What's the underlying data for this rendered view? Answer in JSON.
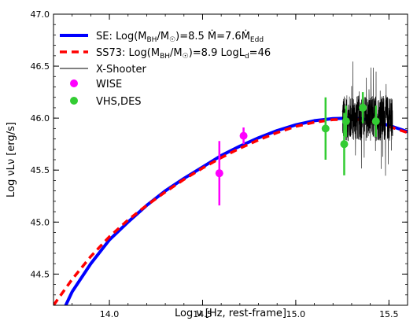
{
  "chart_data": {
    "type": "scatter",
    "xlabel": "Log ν [Hz, rest-frame]",
    "ylabel": "Log νLν [erg/s]",
    "xlim": [
      13.7,
      15.6
    ],
    "ylim": [
      44.2,
      47.0
    ],
    "x_ticks": [
      {
        "value": 14.0,
        "label": "14.0"
      },
      {
        "value": 14.5,
        "label": "14.5"
      },
      {
        "value": 15.0,
        "label": "15.0"
      },
      {
        "value": 15.5,
        "label": "15.5"
      }
    ],
    "y_ticks": [
      {
        "value": 44.5,
        "label": "44.5"
      },
      {
        "value": 45.0,
        "label": "45.0"
      },
      {
        "value": 45.5,
        "label": "45.5"
      },
      {
        "value": 46.0,
        "label": "46.0"
      },
      {
        "value": 46.5,
        "label": "46.5"
      },
      {
        "value": 47.0,
        "label": "47.0"
      }
    ],
    "grid": false,
    "legend_position": "top-left",
    "series": [
      {
        "name": "SE: Log(M_BH/M☉)=8.5 Ṁ=7.6Ṁ_Edd",
        "kind": "line",
        "style": "solid",
        "color": "#0000ff",
        "x": [
          13.7,
          13.8,
          13.9,
          14.0,
          14.1,
          14.2,
          14.3,
          14.4,
          14.5,
          14.6,
          14.7,
          14.8,
          14.9,
          15.0,
          15.1,
          15.2,
          15.3,
          15.35,
          15.4,
          15.5,
          15.6
        ],
        "y": [
          43.95,
          44.33,
          44.6,
          44.83,
          45.0,
          45.16,
          45.3,
          45.42,
          45.53,
          45.64,
          45.73,
          45.81,
          45.88,
          45.935,
          45.975,
          45.995,
          46.0,
          45.995,
          45.98,
          45.93,
          45.87
        ]
      },
      {
        "name": "SS73: Log(M_BH/M☉)=8.9 LogL_d=46",
        "kind": "line",
        "style": "dashed",
        "color": "#ff0000",
        "x": [
          13.7,
          13.8,
          13.9,
          14.0,
          14.1,
          14.2,
          14.3,
          14.4,
          14.5,
          14.6,
          14.7,
          14.8,
          14.9,
          15.0,
          15.1,
          15.2,
          15.3,
          15.35,
          15.4,
          15.5,
          15.6
        ],
        "y": [
          44.2,
          44.45,
          44.67,
          44.86,
          45.02,
          45.16,
          45.29,
          45.41,
          45.52,
          45.62,
          45.71,
          45.79,
          45.86,
          45.92,
          45.96,
          45.985,
          45.99,
          45.985,
          45.97,
          45.92,
          45.86
        ]
      },
      {
        "name": "X-Shooter",
        "kind": "spectrum",
        "color": "#000000",
        "x_range": [
          15.25,
          15.52
        ],
        "center_y": 46.0,
        "scatter": 0.22
      },
      {
        "name": "WISE",
        "kind": "errorbar",
        "color": "#ff00ff",
        "points": [
          {
            "x": 14.59,
            "y": 45.47,
            "yerr": 0.31
          },
          {
            "x": 14.72,
            "y": 45.83,
            "yerr": 0.08
          }
        ]
      },
      {
        "name": "VHS,DES",
        "kind": "errorbar",
        "color": "#33cc33",
        "points": [
          {
            "x": 15.16,
            "y": 45.9,
            "yerr": 0.3
          },
          {
            "x": 15.26,
            "y": 45.75,
            "yerr": 0.3
          },
          {
            "x": 15.27,
            "y": 45.97,
            "yerr": 0.15
          },
          {
            "x": 15.36,
            "y": 46.1,
            "yerr": 0.15
          },
          {
            "x": 15.43,
            "y": 45.97,
            "yerr": 0.15
          }
        ]
      }
    ],
    "legend": [
      {
        "series": 0,
        "label_parts": [
          "SE: Log(M",
          "BH",
          "/M",
          "☉",
          ")=8.5 Ṁ=7.6Ṁ",
          "Edd"
        ]
      },
      {
        "series": 1,
        "label_parts": [
          "SS73: Log(M",
          "BH",
          "/M",
          "☉",
          ")=8.9 LogL",
          "d",
          "=46"
        ]
      },
      {
        "series": 2,
        "label_parts": [
          "X-Shooter"
        ]
      },
      {
        "series": 3,
        "label_parts": [
          "WISE"
        ]
      },
      {
        "series": 4,
        "label_parts": [
          "VHS,DES"
        ]
      }
    ]
  }
}
